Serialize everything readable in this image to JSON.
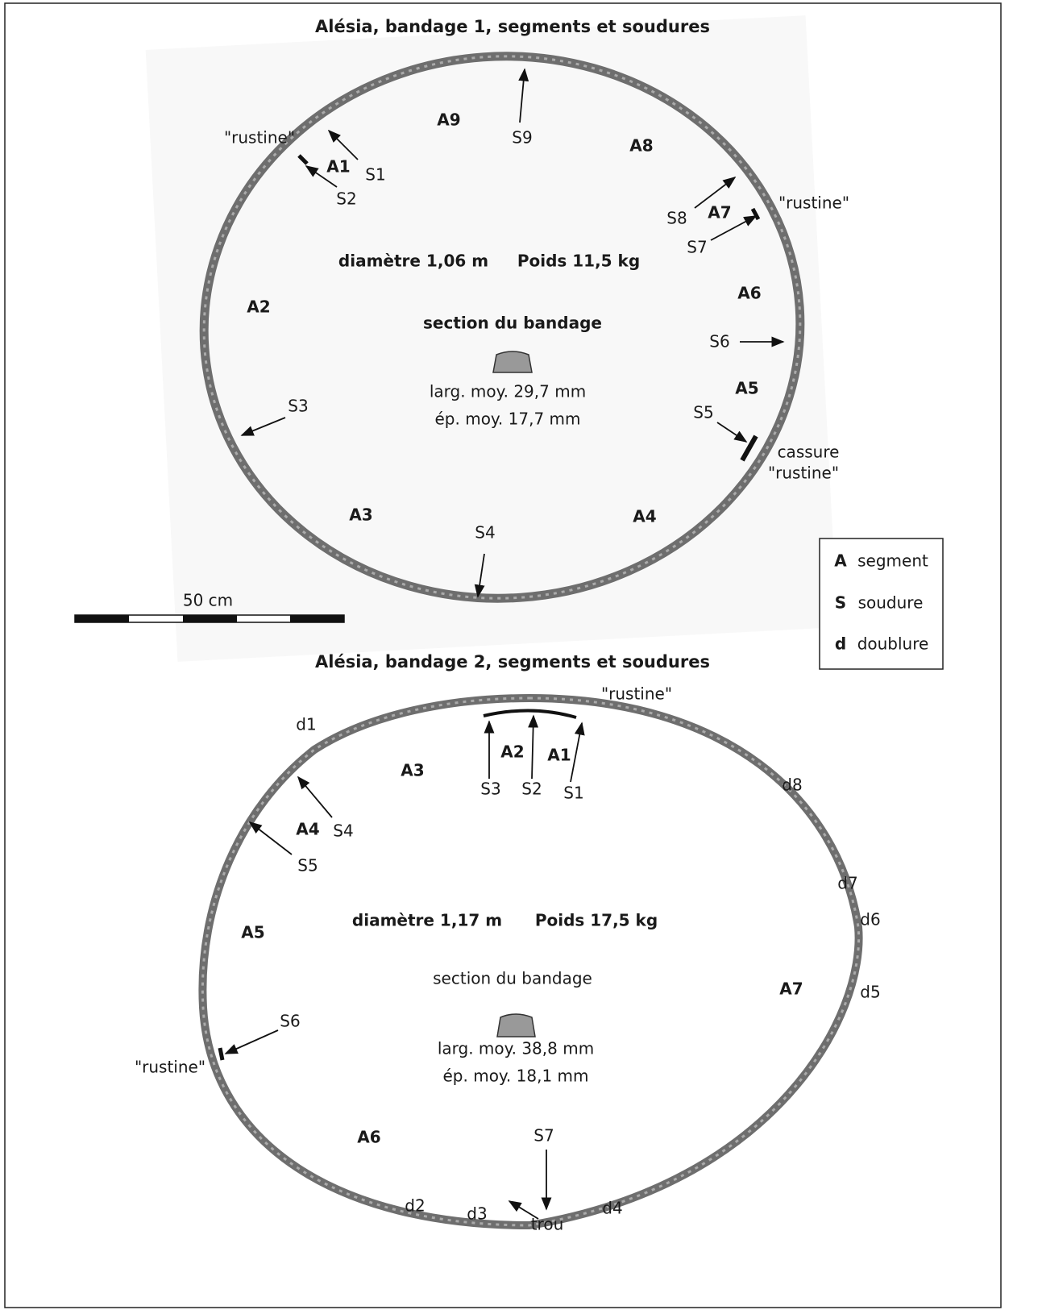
{
  "figure": {
    "bandage_1": {
      "title": "Alésia, bandage 1, segments et soudures",
      "segments": [
        "A1",
        "A2",
        "A3",
        "A4",
        "A5",
        "A6",
        "A7",
        "A8",
        "A9"
      ],
      "welds": [
        "S1",
        "S2",
        "S3",
        "S4",
        "S5",
        "S6",
        "S7",
        "S8",
        "S9"
      ],
      "patches": [
        "\"rustine\"",
        "\"rustine\"",
        "\"rustine\""
      ],
      "break": "cassure",
      "diameter": "diamètre 1,06 m",
      "weight": "Poids 11,5 kg",
      "section": {
        "title": "section du bandage",
        "width": "larg. moy. 29,7 mm",
        "thickness": "ép. moy. 17,7 mm"
      }
    },
    "bandage_2": {
      "title": "Alésia, bandage 2, segments et soudures",
      "segments": [
        "A1",
        "A2",
        "A3",
        "A4",
        "A5",
        "A6",
        "A7"
      ],
      "welds": [
        "S1",
        "S2",
        "S3",
        "S4",
        "S5",
        "S6",
        "S7"
      ],
      "linings": [
        "d1",
        "d2",
        "d3",
        "d4",
        "d5",
        "d6",
        "d7",
        "d8"
      ],
      "patches": [
        "\"rustine\"",
        "\"rustine\""
      ],
      "hole": "trou",
      "diameter": "diamètre 1,17 m",
      "weight": "Poids 17,5 kg",
      "section": {
        "title": "section du bandage",
        "width": "larg. moy. 38,8 mm",
        "thickness": "ép. moy. 18,1 mm"
      }
    },
    "scale": "50 cm",
    "legend": [
      {
        "key": "A",
        "label": "segment"
      },
      {
        "key": "S",
        "label": "soudure"
      },
      {
        "key": "d",
        "label": "doublure"
      }
    ]
  }
}
